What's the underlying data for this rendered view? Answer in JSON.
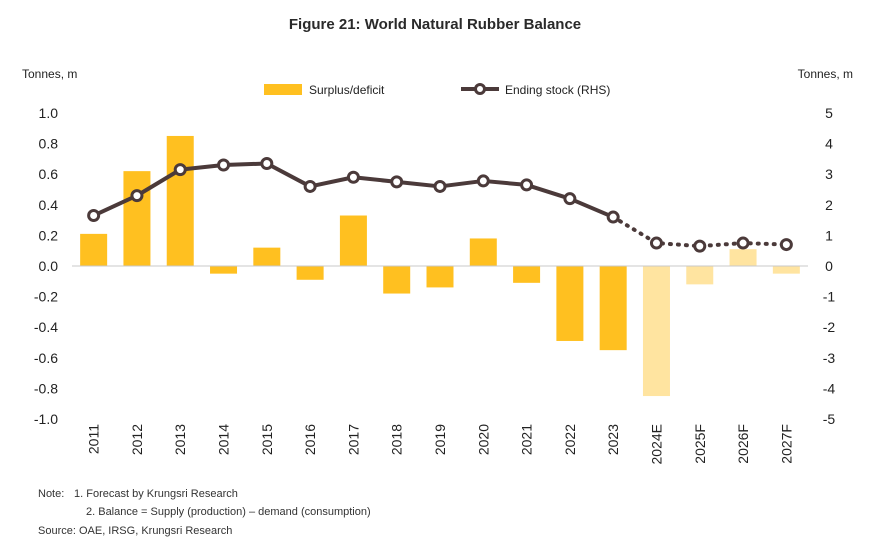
{
  "chart_data": {
    "type": "bar+line",
    "title": "Figure 21: World Natural Rubber Balance",
    "left_axis_unit": "Tonnes, m",
    "right_axis_unit": "Tonnes, m",
    "categories": [
      "2011",
      "2012",
      "2013",
      "2014",
      "2015",
      "2016",
      "2017",
      "2018",
      "2019",
      "2020",
      "2021",
      "2022",
      "2023",
      "2024E",
      "2025F",
      "2026F",
      "2027F"
    ],
    "forecast_start_index": 13,
    "ylim_left": [
      -1.0,
      1.0
    ],
    "yticks_left": [
      "1.0",
      "0.8",
      "0.6",
      "0.4",
      "0.2",
      "0.0",
      "-0.2",
      "-0.4",
      "-0.6",
      "-0.8",
      "-1.0"
    ],
    "ylim_right": [
      -5,
      5
    ],
    "yticks_right": [
      "5",
      "4",
      "3",
      "2",
      "1",
      "0",
      "-1",
      "-2",
      "-3",
      "-4",
      "-5"
    ],
    "series": [
      {
        "name": "Surplus/deficit",
        "type": "bar",
        "axis": "left",
        "values": [
          0.21,
          0.62,
          0.85,
          -0.05,
          0.12,
          -0.09,
          0.33,
          -0.18,
          -0.14,
          0.18,
          -0.11,
          -0.49,
          -0.55,
          -0.85,
          -0.12,
          0.11,
          -0.05
        ]
      },
      {
        "name": "Ending stock (RHS)",
        "type": "line",
        "axis": "right",
        "values": [
          1.65,
          2.3,
          3.15,
          3.3,
          3.35,
          2.6,
          2.9,
          2.75,
          2.6,
          2.78,
          2.65,
          2.2,
          1.6,
          0.75,
          0.65,
          0.75,
          0.7
        ]
      }
    ],
    "colors": {
      "bar": "#FFC020",
      "bar_forecast": "#FFE4A0",
      "line": "#4B3A3A",
      "marker_fill": "#ffffff"
    },
    "legend_position": "top-center",
    "grid": false
  },
  "notes": {
    "label": "Note:",
    "line1": "1. Forecast by Krungsri Research",
    "line2": "2. Balance = Supply (production) – demand (consumption)",
    "source": "Source: OAE, IRSG, Krungsri Research"
  }
}
